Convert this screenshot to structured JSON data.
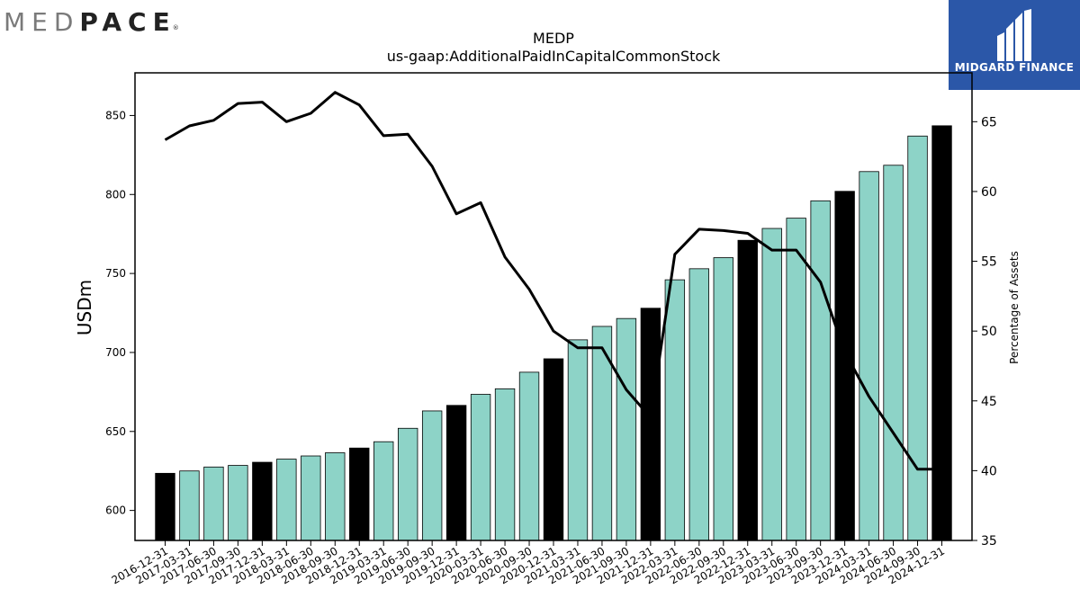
{
  "brand": {
    "company_light": "MED",
    "company_dark": "PACE",
    "company_reg": "®",
    "partner_name": "MIDGARD FINANCE",
    "partner_color": "#2b57a8",
    "partner_icon": "midgard-m-icon"
  },
  "chart_data": {
    "type": "bar",
    "title": "MEDP",
    "subtitle": "us-gaap:AdditionalPaidInCapitalCommonStock",
    "ylabel": "USDm",
    "y2label": "Percentage of Assets",
    "ylim": [
      581,
      877
    ],
    "y2lim": [
      35,
      68.5
    ],
    "yticks": [
      600,
      650,
      700,
      750,
      800,
      850
    ],
    "y2ticks": [
      35,
      40,
      45,
      50,
      55,
      60,
      65
    ],
    "grid": false,
    "legend": "none",
    "bar_color": "#8dd3c7",
    "highlight_color": "#000000",
    "line_color": "#000000",
    "categories": [
      "2016-12-31",
      "2017-03-31",
      "2017-06-30",
      "2017-09-30",
      "2017-12-31",
      "2018-03-31",
      "2018-06-30",
      "2018-09-30",
      "2018-12-31",
      "2019-03-31",
      "2019-06-30",
      "2019-09-30",
      "2019-12-31",
      "2020-03-31",
      "2020-06-30",
      "2020-09-30",
      "2020-12-31",
      "2021-03-31",
      "2021-06-30",
      "2021-09-30",
      "2021-12-31",
      "2022-03-31",
      "2022-06-30",
      "2022-09-30",
      "2022-12-31",
      "2023-03-31",
      "2023-06-30",
      "2023-09-30",
      "2023-12-31",
      "2024-03-31",
      "2024-06-30",
      "2024-09-30",
      "2024-12-31"
    ],
    "highlighted": [
      0,
      4,
      8,
      12,
      16,
      20,
      24,
      28,
      32
    ],
    "values": [
      623.5,
      625,
      627.5,
      628.5,
      630.5,
      632.5,
      634.5,
      636.5,
      639.5,
      643.5,
      652,
      663,
      666.5,
      673.5,
      677,
      687.5,
      696,
      708,
      716.5,
      721.5,
      728,
      746,
      753,
      760,
      771,
      778.5,
      785,
      796,
      802,
      814.5,
      818.5,
      837,
      843.5
    ],
    "pct_assets": [
      63.7,
      64.7,
      65.1,
      66.3,
      66.4,
      65.0,
      65.6,
      67.1,
      66.2,
      64.0,
      64.1,
      61.8,
      58.4,
      59.2,
      55.3,
      53.0,
      50.0,
      48.8,
      48.8,
      45.8,
      43.8,
      55.5,
      57.3,
      57.2,
      57.0,
      55.8,
      55.8,
      53.5,
      48.5,
      45.3,
      42.7,
      40.1,
      40.1
    ]
  }
}
